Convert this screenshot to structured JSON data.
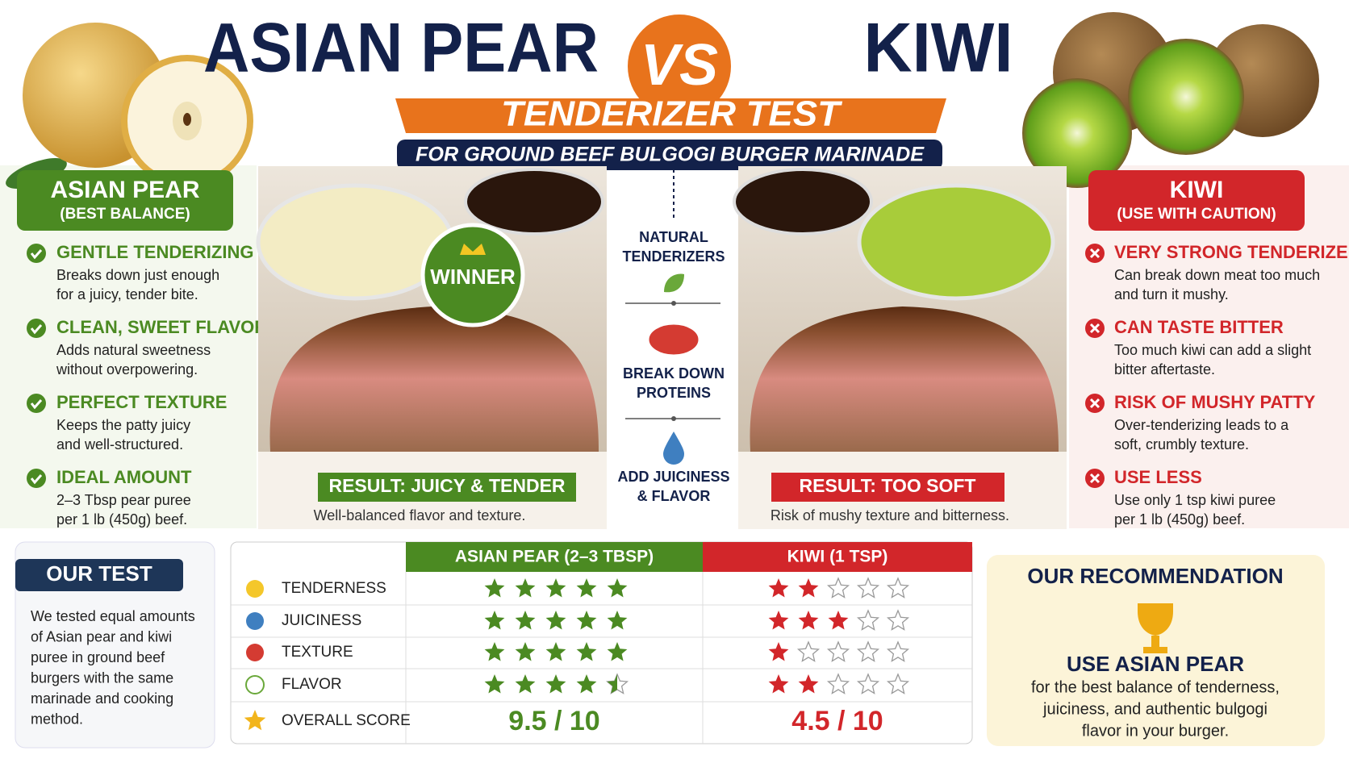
{
  "header": {
    "title_left": "ASIAN PEAR",
    "vs": "VS",
    "title_right": "KIWI",
    "subtitle": "TENDERIZER TEST",
    "tagline": "FOR GROUND BEEF BULGOGI BURGER MARINADE"
  },
  "left_panel": {
    "title": "ASIAN PEAR",
    "subtitle": "(BEST BALANCE)",
    "items": [
      {
        "title": "GENTLE TENDERIZING",
        "lines": [
          "Breaks down just enough",
          "for a juicy, tender bite."
        ]
      },
      {
        "title": "CLEAN, SWEET FLAVOR",
        "lines": [
          "Adds natural sweetness",
          "without overpowering."
        ]
      },
      {
        "title": "PERFECT TEXTURE",
        "lines": [
          "Keeps the patty juicy",
          "and well-structured."
        ]
      },
      {
        "title": "IDEAL AMOUNT",
        "lines": [
          "2–3 Tbsp pear puree",
          "per 1 lb (450g) beef."
        ]
      }
    ]
  },
  "right_panel": {
    "title": "KIWI",
    "subtitle": "(USE WITH CAUTION)",
    "items": [
      {
        "title": "VERY STRONG TENDERIZER",
        "lines": [
          "Can break down meat too much",
          "and turn it mushy."
        ]
      },
      {
        "title": "CAN TASTE BITTER",
        "lines": [
          "Too much kiwi can add a slight",
          "bitter aftertaste."
        ]
      },
      {
        "title": "RISK OF MUSHY PATTY",
        "lines": [
          "Over-tenderizing leads to a",
          "soft, crumbly texture."
        ]
      },
      {
        "title": "USE LESS",
        "lines": [
          "Use only 1 tsp kiwi puree",
          "per 1 lb (450g) beef."
        ]
      }
    ]
  },
  "center": {
    "badge": "WINNER",
    "left_result": "RESULT: JUICY & TENDER",
    "left_note": "Well-balanced flavor and texture.",
    "right_result": "RESULT: TOO SOFT",
    "right_note": "Risk of mushy texture and bitterness.",
    "steps": [
      [
        "NATURAL",
        "TENDERIZERS"
      ],
      [
        "BREAK DOWN",
        "PROTEINS"
      ],
      [
        "ADD JUICINESS",
        "& FLAVOR"
      ]
    ]
  },
  "our_test": {
    "title": "OUR TEST",
    "lines": [
      "We tested equal amounts",
      "of Asian pear and kiwi",
      "puree in ground beef",
      "burgers with the same",
      "marinade and cooking",
      "method."
    ]
  },
  "table": {
    "columns": [
      "ASIAN PEAR (2–3 TBSP)",
      "KIWI (1 TSP)"
    ],
    "star_max": 5,
    "rows": [
      {
        "label": "TENDERNESS",
        "ratings": [
          5,
          2
        ]
      },
      {
        "label": "JUICINESS",
        "ratings": [
          5,
          3
        ]
      },
      {
        "label": "TEXTURE",
        "ratings": [
          5,
          1
        ]
      },
      {
        "label": "FLAVOR",
        "ratings": [
          4.5,
          2
        ]
      }
    ],
    "overall": {
      "label": "OVERALL SCORE",
      "scores": [
        "9.5 / 10",
        "4.5 / 10"
      ]
    }
  },
  "recommendation": {
    "title": "OUR RECOMMENDATION",
    "headline": "USE ASIAN PEAR",
    "lines": [
      "for the best balance of tenderness,",
      "juiciness, and authentic bulgogi",
      "flavor in your burger."
    ]
  }
}
